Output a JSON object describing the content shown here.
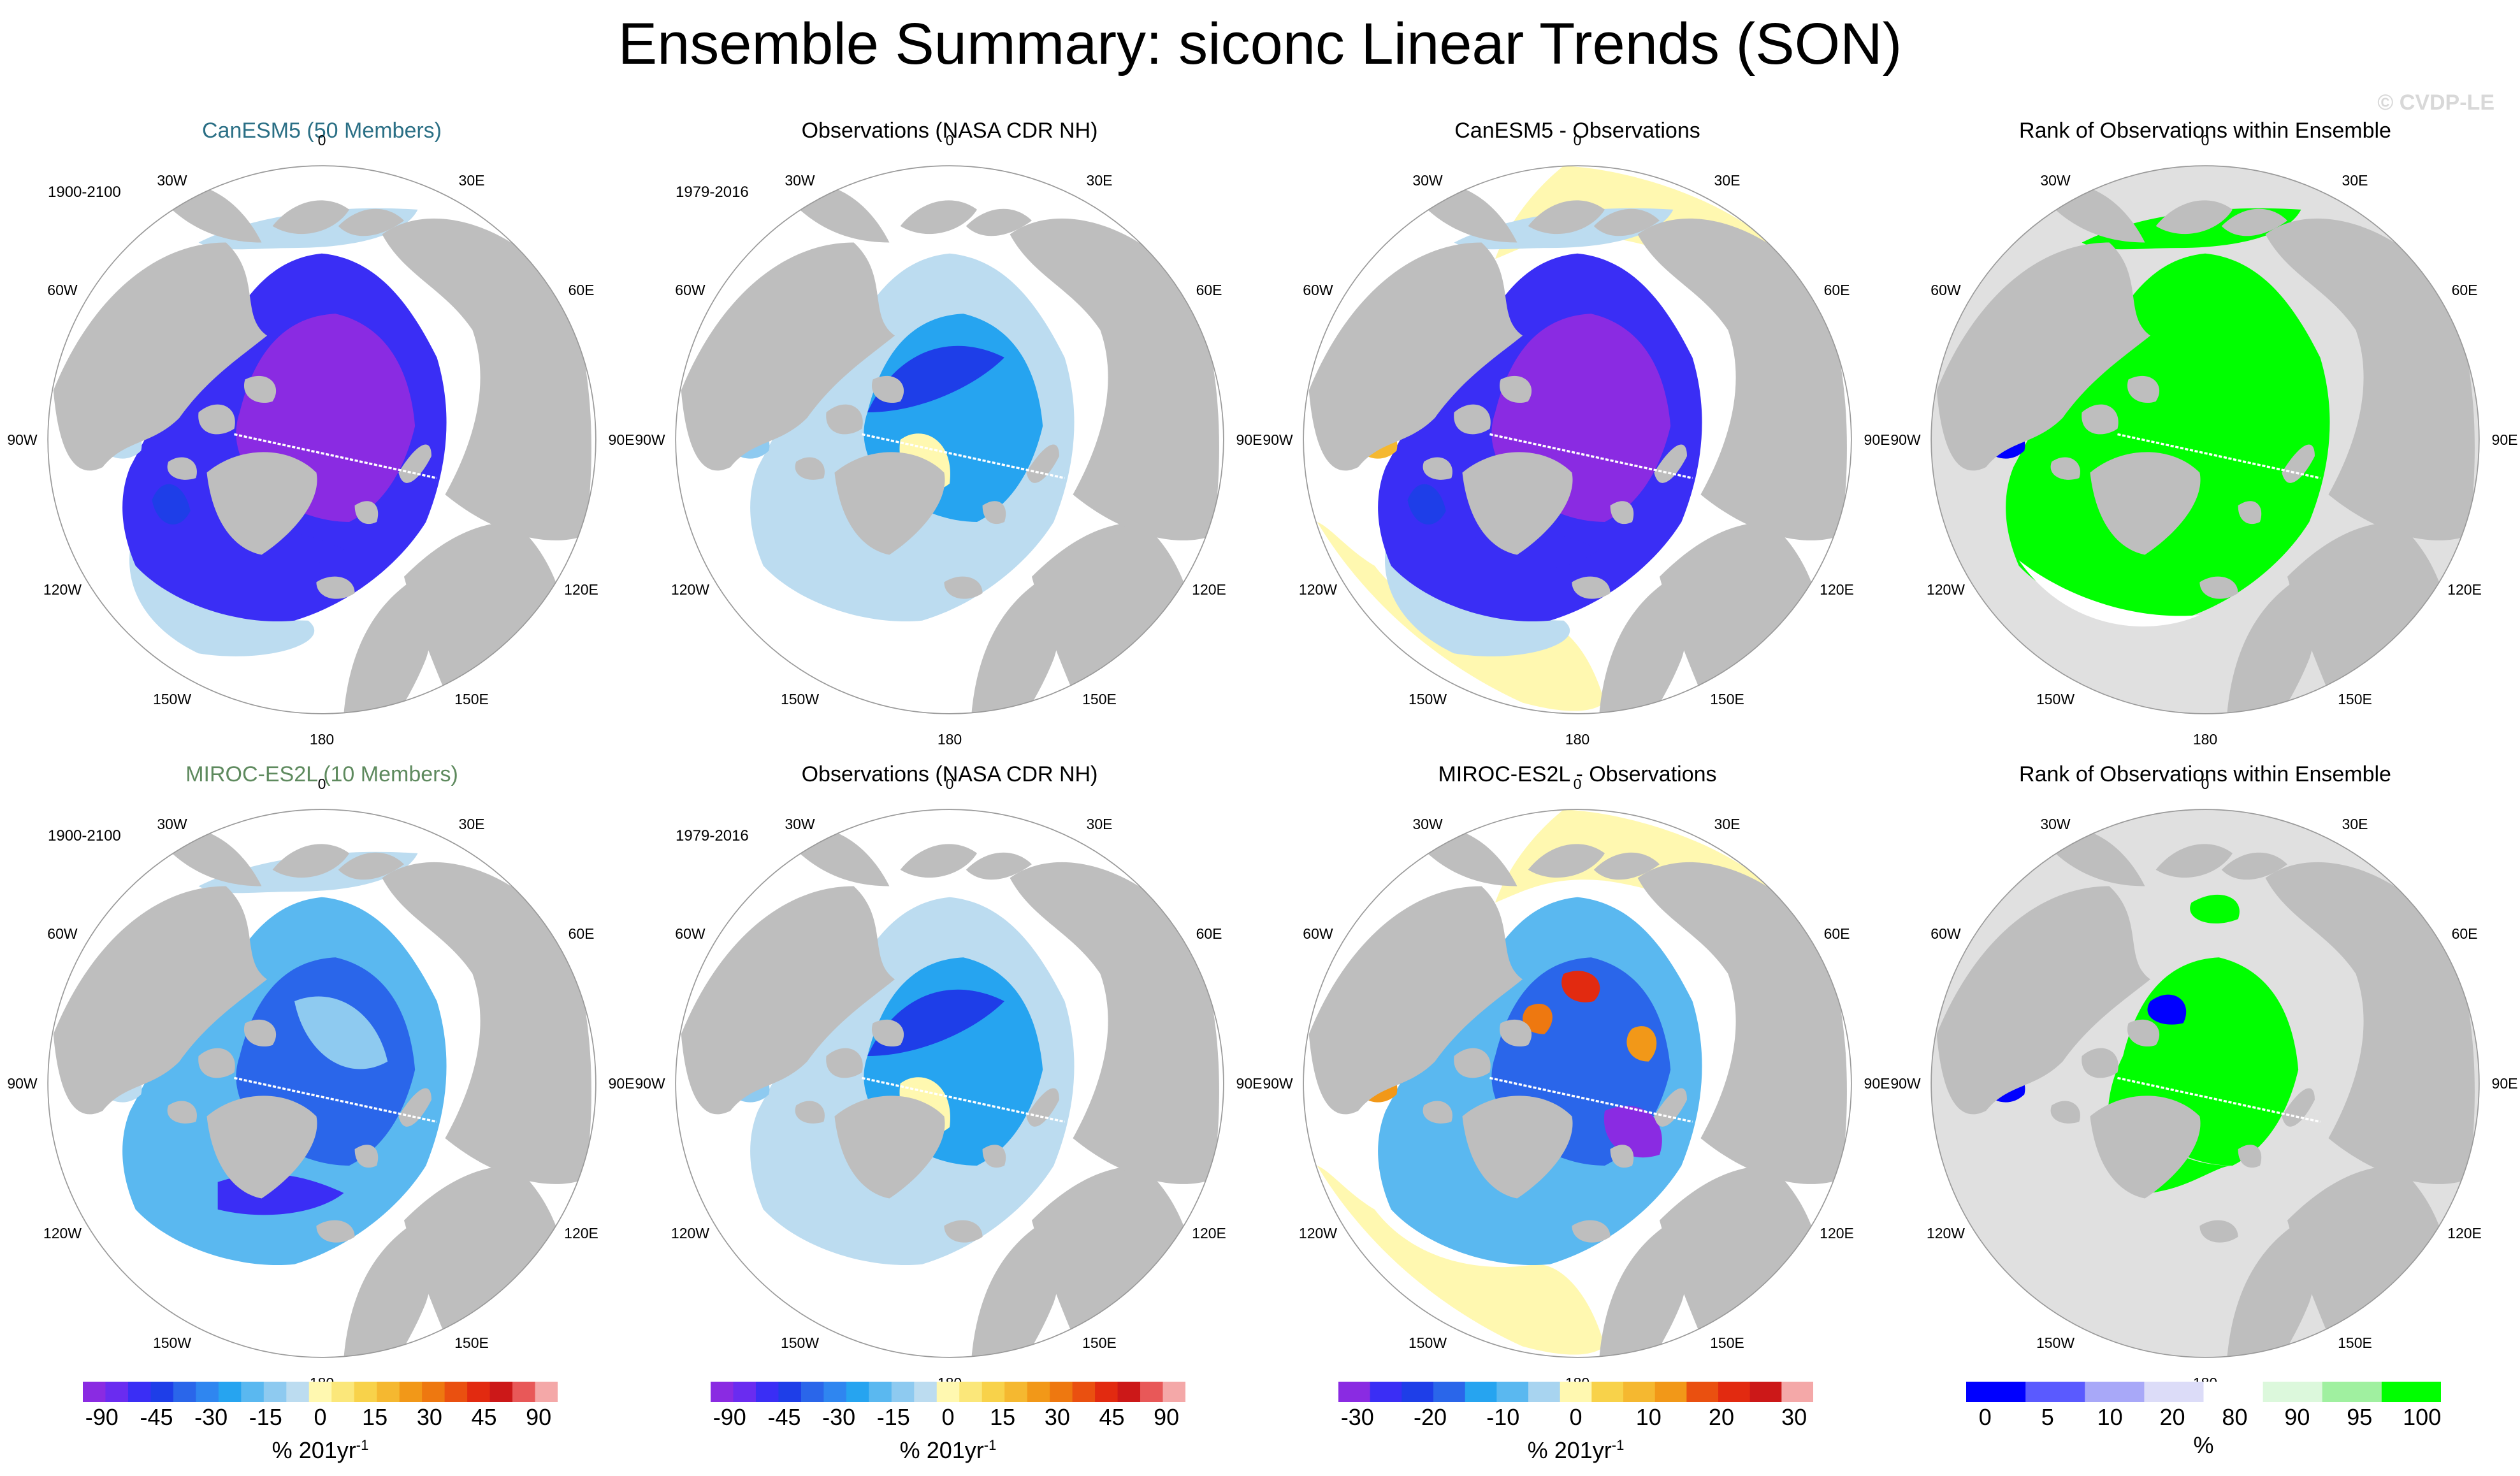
{
  "title": "Ensemble Summary: siconc Linear Trends (SON)",
  "watermark": "© CVDP-LE",
  "colors": {
    "land": "#bebebe",
    "rank_bg": "#e0e0e0",
    "canesm_title": "#2a6f85",
    "miroc_title": "#5e8a5e"
  },
  "panels": [
    {
      "title": "CanESM5 (50 Members)",
      "title_color": "#2a6f85",
      "period": "1900-2100",
      "kind": "model_strong"
    },
    {
      "title": "Observations (NASA CDR NH)",
      "title_color": "#000000",
      "period": "1979-2016",
      "kind": "obs"
    },
    {
      "title": "CanESM5 - Observations",
      "title_color": "#000000",
      "period": "",
      "kind": "diff_canesm"
    },
    {
      "title": "Rank of Observations within Ensemble",
      "title_color": "#000000",
      "period": "",
      "kind": "rank_canesm"
    },
    {
      "title": "MIROC-ES2L (10 Members)",
      "title_color": "#5e8a5e",
      "period": "1900-2100",
      "kind": "model_moderate"
    },
    {
      "title": "Observations (NASA CDR NH)",
      "title_color": "#000000",
      "period": "1979-2016",
      "kind": "obs"
    },
    {
      "title": "MIROC-ES2L - Observations",
      "title_color": "#000000",
      "period": "",
      "kind": "diff_miroc"
    },
    {
      "title": "Rank of Observations within Ensemble",
      "title_color": "#000000",
      "period": "",
      "kind": "rank_miroc"
    }
  ],
  "longitude_labels": {
    "n180": "180",
    "n150e": "150E",
    "n120e": "120E",
    "n90e": "90E",
    "n60e": "60E",
    "n30e": "30E",
    "n0": "0",
    "n30w": "30W",
    "n60w": "60W",
    "n90w": "90W",
    "n120w": "120W",
    "n150w": "150W"
  },
  "chart_data": [
    {
      "type": "colorbar",
      "units": "% 201yr",
      "units_exponent": "-1",
      "colors": [
        "#8a2be2",
        "#6a2cf0",
        "#3a2ef5",
        "#1e3ee8",
        "#2a66ea",
        "#2f86f0",
        "#26a4f0",
        "#5ab8f0",
        "#8ecaf0",
        "#bcdcf0",
        "#fff8b0",
        "#fbe77a",
        "#f8d24a",
        "#f5b830",
        "#f29818",
        "#ee7810",
        "#ea5010",
        "#e22a10",
        "#cc1818",
        "#e85858",
        "#f4a8a8"
      ],
      "tick_labels": [
        "-90",
        "-45",
        "-30",
        "-15",
        "0",
        "15",
        "30",
        "45",
        "90"
      ]
    },
    {
      "type": "colorbar",
      "units": "% 201yr",
      "units_exponent": "-1",
      "colors": [
        "#8a2be2",
        "#6a2cf0",
        "#3a2ef5",
        "#1e3ee8",
        "#2a66ea",
        "#2f86f0",
        "#26a4f0",
        "#5ab8f0",
        "#8ecaf0",
        "#bcdcf0",
        "#fff8b0",
        "#fbe77a",
        "#f8d24a",
        "#f5b830",
        "#f29818",
        "#ee7810",
        "#ea5010",
        "#e22a10",
        "#cc1818",
        "#e85858",
        "#f4a8a8"
      ],
      "tick_labels": [
        "-90",
        "-45",
        "-30",
        "-15",
        "0",
        "15",
        "30",
        "45",
        "90"
      ]
    },
    {
      "type": "colorbar",
      "units": "% 201yr",
      "units_exponent": "-1",
      "colors": [
        "#8a2be2",
        "#3a2ef5",
        "#1e3ee8",
        "#2a66ea",
        "#26a4f0",
        "#5ab8f0",
        "#a8d4f0",
        "#fff8b0",
        "#f8d24a",
        "#f5b830",
        "#f29818",
        "#ea5010",
        "#e22a10",
        "#cc1818",
        "#f4a8a8"
      ],
      "tick_labels": [
        "-30",
        "-20",
        "-10",
        "0",
        "10",
        "20",
        "30"
      ]
    },
    {
      "type": "colorbar",
      "units": "%",
      "units_exponent": "",
      "colors": [
        "#0000ff",
        "#5a5aff",
        "#a8a8f8",
        "#dcdcf8",
        "#ffffff",
        "#dcf8dc",
        "#a0f0a0",
        "#00ff00"
      ],
      "tick_labels": [
        "0",
        "5",
        "10",
        "20",
        "80",
        "90",
        "95",
        "100"
      ]
    }
  ]
}
